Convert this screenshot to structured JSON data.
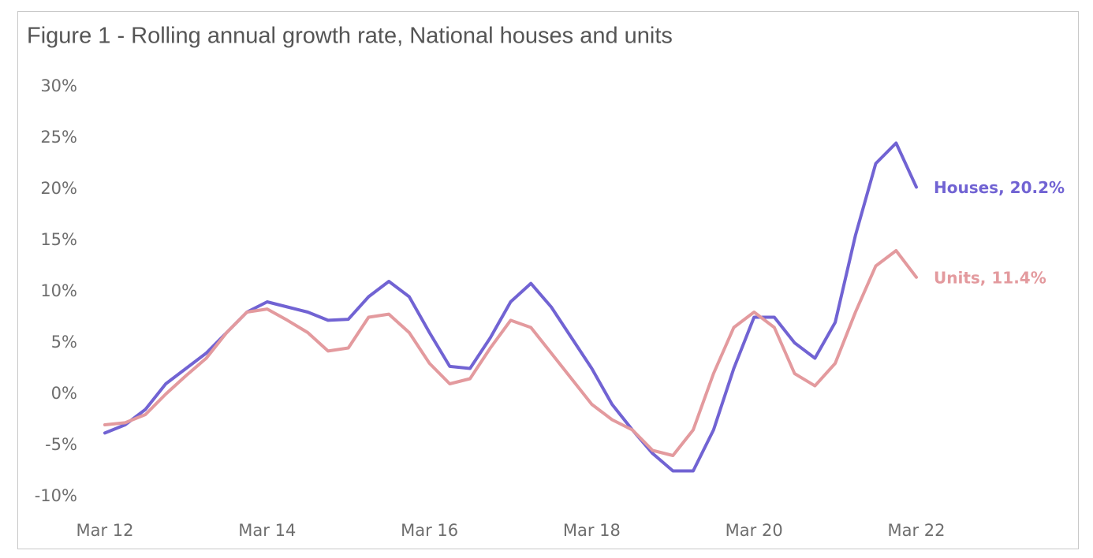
{
  "chart_data": {
    "type": "line",
    "title": "Figure 1 -  Rolling annual growth rate, National houses and units",
    "categories": [
      "Mar 12",
      null,
      null,
      null,
      null,
      null,
      null,
      null,
      "Mar 14",
      null,
      null,
      null,
      null,
      null,
      null,
      null,
      "Mar 16",
      null,
      null,
      null,
      null,
      null,
      null,
      null,
      "Mar 18",
      null,
      null,
      null,
      null,
      null,
      null,
      null,
      "Mar 20",
      null,
      null,
      null,
      null,
      null,
      null,
      null,
      "Mar 22"
    ],
    "series": [
      {
        "label": "Houses, 20.2%",
        "color": "#7163d3",
        "values": [
          -3.8,
          -3.0,
          -1.5,
          1.0,
          2.5,
          4.0,
          6.0,
          8.0,
          9.0,
          8.5,
          8.0,
          7.2,
          7.3,
          9.5,
          11.0,
          9.5,
          6.0,
          2.7,
          2.5,
          5.5,
          9.0,
          10.8,
          8.5,
          5.5,
          2.5,
          -1.0,
          -3.5,
          -5.8,
          -7.5,
          -7.5,
          -3.5,
          2.5,
          7.5,
          7.5,
          5.0,
          3.5,
          7.0,
          15.5,
          22.5,
          24.5,
          20.2
        ]
      },
      {
        "label": "Units, 11.4%",
        "color": "#e39a9e",
        "values": [
          -3.0,
          -2.8,
          -2.0,
          0.0,
          1.8,
          3.5,
          6.0,
          8.0,
          8.3,
          7.2,
          6.0,
          4.2,
          4.5,
          7.5,
          7.8,
          6.0,
          3.0,
          1.0,
          1.5,
          4.5,
          7.2,
          6.5,
          4.0,
          1.5,
          -1.0,
          -2.5,
          -3.5,
          -5.5,
          -6.0,
          -3.5,
          2.0,
          6.5,
          8.0,
          6.5,
          2.0,
          0.8,
          3.0,
          8.0,
          12.5,
          14.0,
          11.4
        ]
      }
    ],
    "ylim": [
      -10,
      30
    ],
    "yticks": [
      {
        "value": 30,
        "label": "30%"
      },
      {
        "value": 25,
        "label": "25%"
      },
      {
        "value": 20,
        "label": "20%"
      },
      {
        "value": 15,
        "label": "15%"
      },
      {
        "value": 10,
        "label": "10%"
      },
      {
        "value": 5,
        "label": "5%"
      },
      {
        "value": 0,
        "label": "0%"
      },
      {
        "value": -5,
        "label": "-5%"
      },
      {
        "value": -10,
        "label": "-10%"
      }
    ],
    "grid": false
  }
}
